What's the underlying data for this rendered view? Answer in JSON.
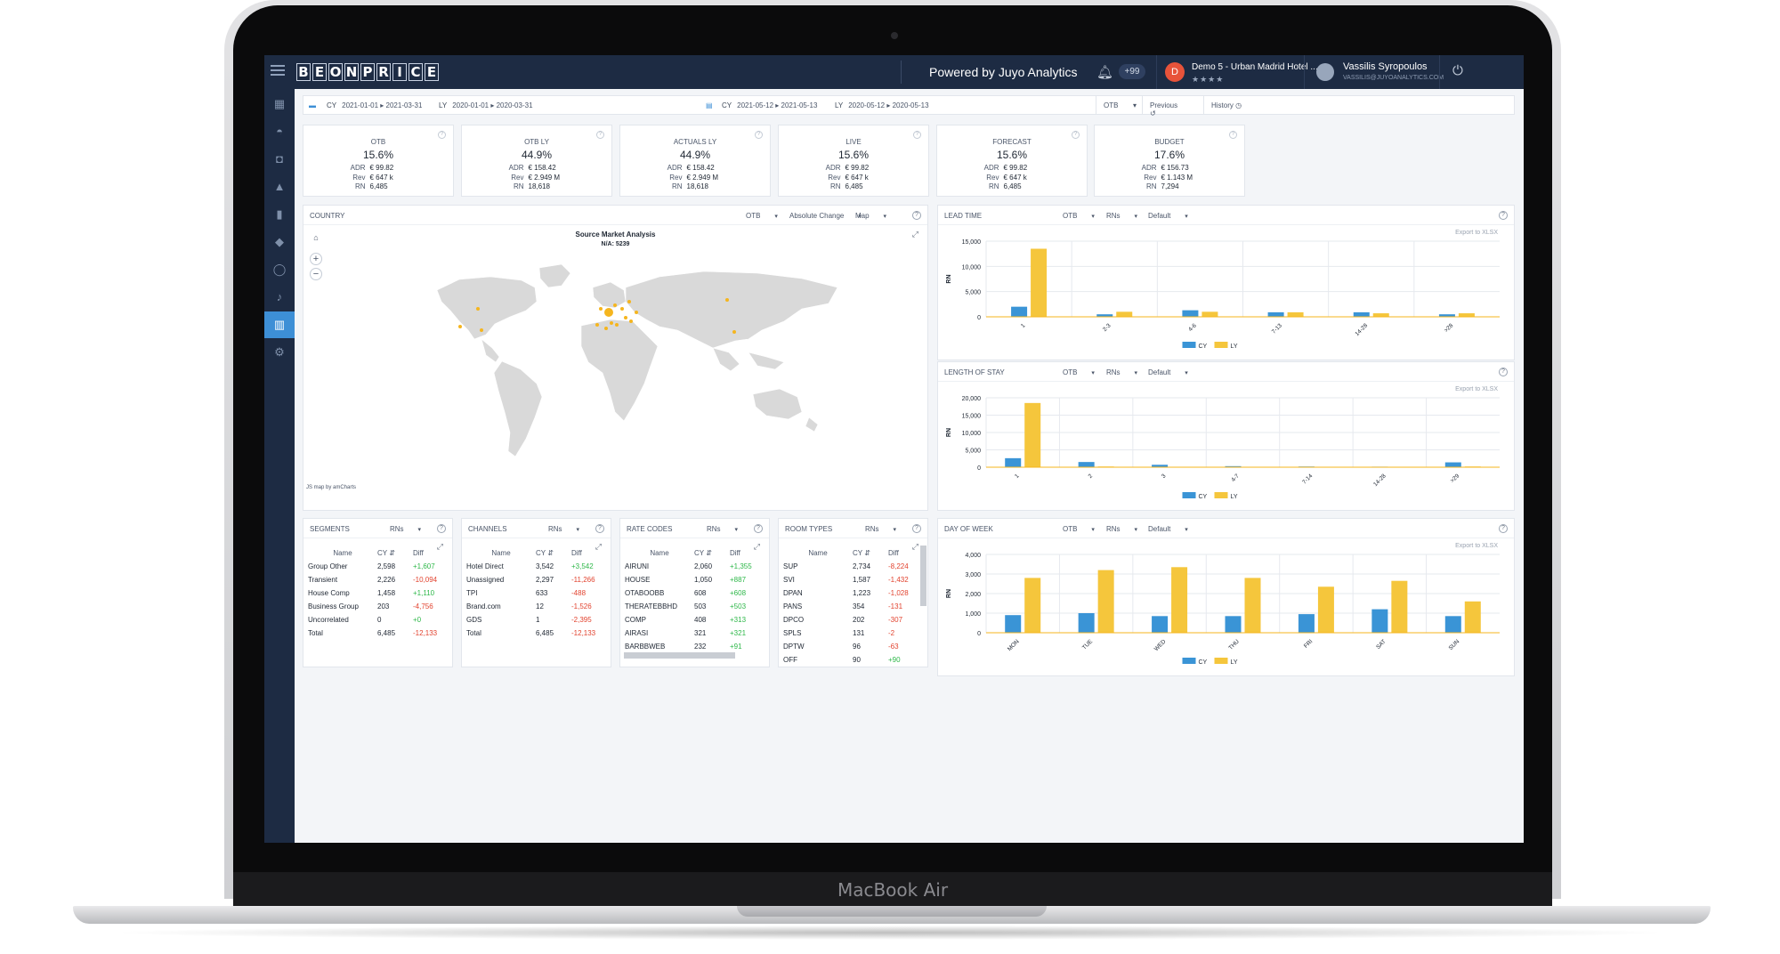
{
  "device": {
    "label": "MacBook Air"
  },
  "header": {
    "logo_letters": [
      "B",
      "E",
      "O",
      "N",
      "P",
      "R",
      "I",
      "C",
      "E"
    ],
    "powered_by": "Powered by Juyo Analytics",
    "notifications_badge": "+99",
    "hotel_initial": "D",
    "hotel_name": "Demo 5 - Urban Madrid Hotel ...",
    "hotel_stars": "★★★★",
    "user_name": "Vassilis Syropoulos",
    "user_email": "VASSILIS@JUYOANALYTICS.COM"
  },
  "filters": {
    "cy_label": "CY",
    "cy_from": "2021-01-01",
    "cy_to": "2021-03-31",
    "ly_label": "LY",
    "ly_from": "2020-01-01",
    "ly_to": "2020-03-31",
    "cy2_label": "CY",
    "cy2_from": "2021-05-12",
    "cy2_to": "2021-05-13",
    "ly2_label": "LY",
    "ly2_from": "2020-05-12",
    "ly2_to": "2020-05-13",
    "otb": "OTB",
    "previous": "Previous",
    "history": "History"
  },
  "kpis": [
    {
      "title": "OTB",
      "value": "15.6%",
      "adr": "€ 99.82",
      "rev": "€ 647 k",
      "rn": "6,485"
    },
    {
      "title": "OTB LY",
      "value": "44.9%",
      "adr": "€ 158.42",
      "rev": "€ 2.949 M",
      "rn": "18,618"
    },
    {
      "title": "ACTUALS LY",
      "value": "44.9%",
      "adr": "€ 158.42",
      "rev": "€ 2.949 M",
      "rn": "18,618"
    },
    {
      "title": "LIVE",
      "value": "15.6%",
      "adr": "€ 99.82",
      "rev": "€ 647 k",
      "rn": "6,485"
    },
    {
      "title": "FORECAST",
      "value": "15.6%",
      "adr": "€ 99.82",
      "rev": "€ 647 k",
      "rn": "6,485"
    },
    {
      "title": "BUDGET",
      "value": "17.6%",
      "adr": "€ 156.73",
      "rev": "€ 1.143 M",
      "rn": "7,294"
    }
  ],
  "kpi_labels": {
    "adr": "ADR",
    "rev": "Rev",
    "rn": "RN"
  },
  "country": {
    "title": "COUNTRY",
    "opt1": "OTB",
    "opt2": "Absolute Change",
    "opt3": "Map",
    "map_title": "Source Market Analysis",
    "map_sub": "N/A: 5239",
    "credit": "JS map by amCharts"
  },
  "legend": {
    "cy": "CY",
    "ly": "LY"
  },
  "export_label": "Export to XLSX",
  "chart_data": [
    {
      "type": "bar",
      "title": "LEAD TIME",
      "ylabel": "RN",
      "options": [
        "OTB",
        "RNs",
        "Default"
      ],
      "categories": [
        "1",
        "2-3",
        "4-6",
        "7-13",
        "14-28",
        ">28"
      ],
      "ylim": [
        0,
        15000
      ],
      "yticks": [
        0,
        5000,
        10000,
        15000
      ],
      "series": [
        {
          "name": "CY",
          "color": "#3a94d6",
          "values": [
            2000,
            500,
            1300,
            900,
            900,
            500
          ]
        },
        {
          "name": "LY",
          "color": "#f5c63c",
          "values": [
            13500,
            1000,
            1000,
            900,
            700,
            700
          ]
        }
      ]
    },
    {
      "type": "bar",
      "title": "LENGTH OF STAY",
      "ylabel": "RN",
      "options": [
        "OTB",
        "RNs",
        "Default"
      ],
      "categories": [
        "1",
        "2",
        "3",
        "4-7",
        "7-14",
        "14-28",
        ">29"
      ],
      "ylim": [
        0,
        20000
      ],
      "yticks": [
        0,
        5000,
        10000,
        15000,
        20000
      ],
      "series": [
        {
          "name": "CY",
          "color": "#3a94d6",
          "values": [
            2600,
            1500,
            700,
            300,
            200,
            150,
            1400
          ]
        },
        {
          "name": "LY",
          "color": "#f5c63c",
          "values": [
            18500,
            200,
            100,
            100,
            100,
            100,
            200
          ]
        }
      ]
    },
    {
      "type": "bar",
      "title": "DAY OF WEEK",
      "ylabel": "RN",
      "options": [
        "OTB",
        "RNs",
        "Default"
      ],
      "categories": [
        "MON",
        "TUE",
        "WED",
        "THU",
        "FRI",
        "SAT",
        "SUN"
      ],
      "ylim": [
        0,
        4000
      ],
      "yticks": [
        0,
        1000,
        2000,
        3000,
        4000
      ],
      "series": [
        {
          "name": "CY",
          "color": "#3a94d6",
          "values": [
            900,
            1000,
            850,
            850,
            950,
            1200,
            850
          ]
        },
        {
          "name": "LY",
          "color": "#f5c63c",
          "values": [
            2800,
            3200,
            3350,
            2800,
            2350,
            2650,
            1600
          ]
        }
      ]
    }
  ],
  "segments": {
    "title": "SEGMENTS",
    "opt": "RNs",
    "cols": [
      "Name",
      "CY",
      "Diff"
    ],
    "rows": [
      {
        "name": "Group Other",
        "cy": "2,598",
        "diff": "+1,607",
        "sign": "pos"
      },
      {
        "name": "Transient",
        "cy": "2,226",
        "diff": "-10,094",
        "sign": "neg"
      },
      {
        "name": "House Comp",
        "cy": "1,458",
        "diff": "+1,110",
        "sign": "pos"
      },
      {
        "name": "Business Group",
        "cy": "203",
        "diff": "-4,756",
        "sign": "neg"
      },
      {
        "name": "Uncorrelated",
        "cy": "0",
        "diff": "+0",
        "sign": "pos"
      },
      {
        "name": "Total",
        "cy": "6,485",
        "diff": "-12,133",
        "sign": "neg"
      }
    ]
  },
  "channels": {
    "title": "CHANNELS",
    "opt": "RNs",
    "cols": [
      "Name",
      "CY",
      "Diff"
    ],
    "rows": [
      {
        "name": "Hotel Direct",
        "cy": "3,542",
        "diff": "+3,542",
        "sign": "pos"
      },
      {
        "name": "Unassigned",
        "cy": "2,297",
        "diff": "-11,266",
        "sign": "neg"
      },
      {
        "name": "TPI",
        "cy": "633",
        "diff": "-488",
        "sign": "neg"
      },
      {
        "name": "Brand.com",
        "cy": "12",
        "diff": "-1,526",
        "sign": "neg"
      },
      {
        "name": "GDS",
        "cy": "1",
        "diff": "-2,395",
        "sign": "neg"
      },
      {
        "name": "Total",
        "cy": "6,485",
        "diff": "-12,133",
        "sign": "neg"
      }
    ]
  },
  "rate_codes": {
    "title": "RATE CODES",
    "opt": "RNs",
    "cols": [
      "Name",
      "CY",
      "Diff"
    ],
    "rows": [
      {
        "name": "AIRUNI",
        "cy": "2,060",
        "diff": "+1,355",
        "sign": "pos"
      },
      {
        "name": "HOUSE",
        "cy": "1,050",
        "diff": "+887",
        "sign": "pos"
      },
      {
        "name": "OTABOOBB",
        "cy": "608",
        "diff": "+608",
        "sign": "pos"
      },
      {
        "name": "THERATEBBHD",
        "cy": "503",
        "diff": "+503",
        "sign": "pos"
      },
      {
        "name": "COMP",
        "cy": "408",
        "diff": "+313",
        "sign": "pos"
      },
      {
        "name": "AIRASI",
        "cy": "321",
        "diff": "+321",
        "sign": "pos"
      },
      {
        "name": "BARBBWEB",
        "cy": "232",
        "diff": "+91",
        "sign": "pos"
      }
    ]
  },
  "room_types": {
    "title": "ROOM TYPES",
    "opt": "RNs",
    "cols": [
      "Name",
      "CY",
      "Diff"
    ],
    "rows": [
      {
        "name": "SUP",
        "cy": "2,734",
        "diff": "-8,224",
        "sign": "neg"
      },
      {
        "name": "SVI",
        "cy": "1,587",
        "diff": "-1,432",
        "sign": "neg"
      },
      {
        "name": "DPAN",
        "cy": "1,223",
        "diff": "-1,028",
        "sign": "neg"
      },
      {
        "name": "PANS",
        "cy": "354",
        "diff": "-131",
        "sign": "neg"
      },
      {
        "name": "DPCO",
        "cy": "202",
        "diff": "-307",
        "sign": "neg"
      },
      {
        "name": "SPLS",
        "cy": "131",
        "diff": "-2",
        "sign": "neg"
      },
      {
        "name": "DPTW",
        "cy": "96",
        "diff": "-63",
        "sign": "neg"
      },
      {
        "name": "OFF",
        "cy": "90",
        "diff": "+90",
        "sign": "pos"
      }
    ]
  }
}
